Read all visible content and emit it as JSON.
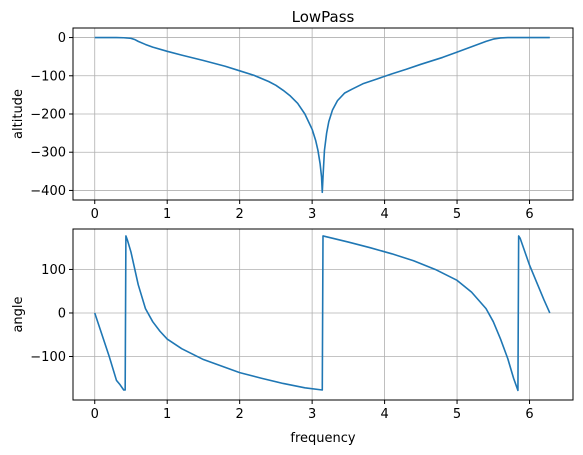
{
  "chart_data": [
    {
      "type": "line",
      "title": "LowPass",
      "xlabel": "frequency",
      "ylabel": "altitude",
      "xlim": [
        -0.3,
        6.6
      ],
      "ylim": [
        -425,
        25
      ],
      "xticks": [
        0,
        1,
        2,
        3,
        4,
        5,
        6
      ],
      "yticks": [
        0,
        -100,
        -200,
        -300,
        -400
      ],
      "grid": true,
      "color": "#1f77b4",
      "series": [
        {
          "x": [
            0,
            0.1,
            0.2,
            0.3,
            0.4,
            0.5,
            0.55,
            0.6,
            0.7,
            0.8,
            1.0,
            1.2,
            1.5,
            1.8,
            2.0,
            2.2,
            2.4,
            2.5,
            2.6,
            2.7,
            2.8,
            2.9,
            3.0,
            3.05,
            3.08,
            3.11,
            3.13,
            3.14,
            3.15,
            3.17,
            3.2,
            3.23,
            3.28,
            3.35,
            3.45,
            3.55,
            3.7,
            3.9,
            4.1,
            4.3,
            4.5,
            4.8,
            5.0,
            5.2,
            5.4,
            5.5,
            5.6,
            5.7,
            5.75,
            5.8,
            5.9,
            6.0,
            6.1,
            6.2,
            6.28
          ],
          "y": [
            0,
            0,
            0,
            0,
            -0.5,
            -2,
            -5,
            -10,
            -18,
            -25,
            -36,
            -46,
            -60,
            -75,
            -87,
            -99,
            -115,
            -125,
            -138,
            -153,
            -172,
            -200,
            -240,
            -270,
            -295,
            -330,
            -365,
            -405,
            -365,
            -295,
            -250,
            -220,
            -190,
            -165,
            -145,
            -135,
            -121,
            -108,
            -95,
            -83,
            -70,
            -52,
            -38,
            -24,
            -10,
            -4,
            -1,
            0,
            0,
            0,
            0,
            0,
            0,
            0,
            0
          ]
        }
      ]
    },
    {
      "type": "line",
      "title": "",
      "xlabel": "frequency",
      "ylabel": "angle",
      "xlim": [
        -0.3,
        6.6
      ],
      "ylim": [
        -200,
        193
      ],
      "xticks": [
        0,
        1,
        2,
        3,
        4,
        5,
        6
      ],
      "yticks": [
        100,
        0,
        -100
      ],
      "grid": true,
      "color": "#1f77b4",
      "series": [
        {
          "x": [
            0,
            0.1,
            0.2,
            0.3,
            0.35,
            0.4,
            0.42,
            0.43,
            0.45,
            0.5,
            0.6,
            0.7,
            0.8,
            0.9,
            1.0,
            1.2,
            1.5,
            1.8,
            2.0,
            2.3,
            2.6,
            2.9,
            3.14,
            3.15,
            3.2,
            3.5,
            3.8,
            4.1,
            4.4,
            4.7,
            5.0,
            5.2,
            5.4,
            5.5,
            5.6,
            5.7,
            5.78,
            5.84,
            5.85,
            5.87,
            6.0,
            6.1,
            6.2,
            6.28
          ],
          "y": [
            0,
            -50,
            -100,
            -155,
            -165,
            -177,
            -177,
            177,
            168,
            140,
            65,
            10,
            -20,
            -42,
            -60,
            -82,
            -107,
            -125,
            -137,
            -150,
            -162,
            -172,
            -177,
            177,
            175,
            163,
            150,
            136,
            120,
            100,
            75,
            48,
            10,
            -20,
            -60,
            -105,
            -150,
            -178,
            177,
            172,
            110,
            70,
            30,
            0
          ]
        }
      ]
    }
  ]
}
